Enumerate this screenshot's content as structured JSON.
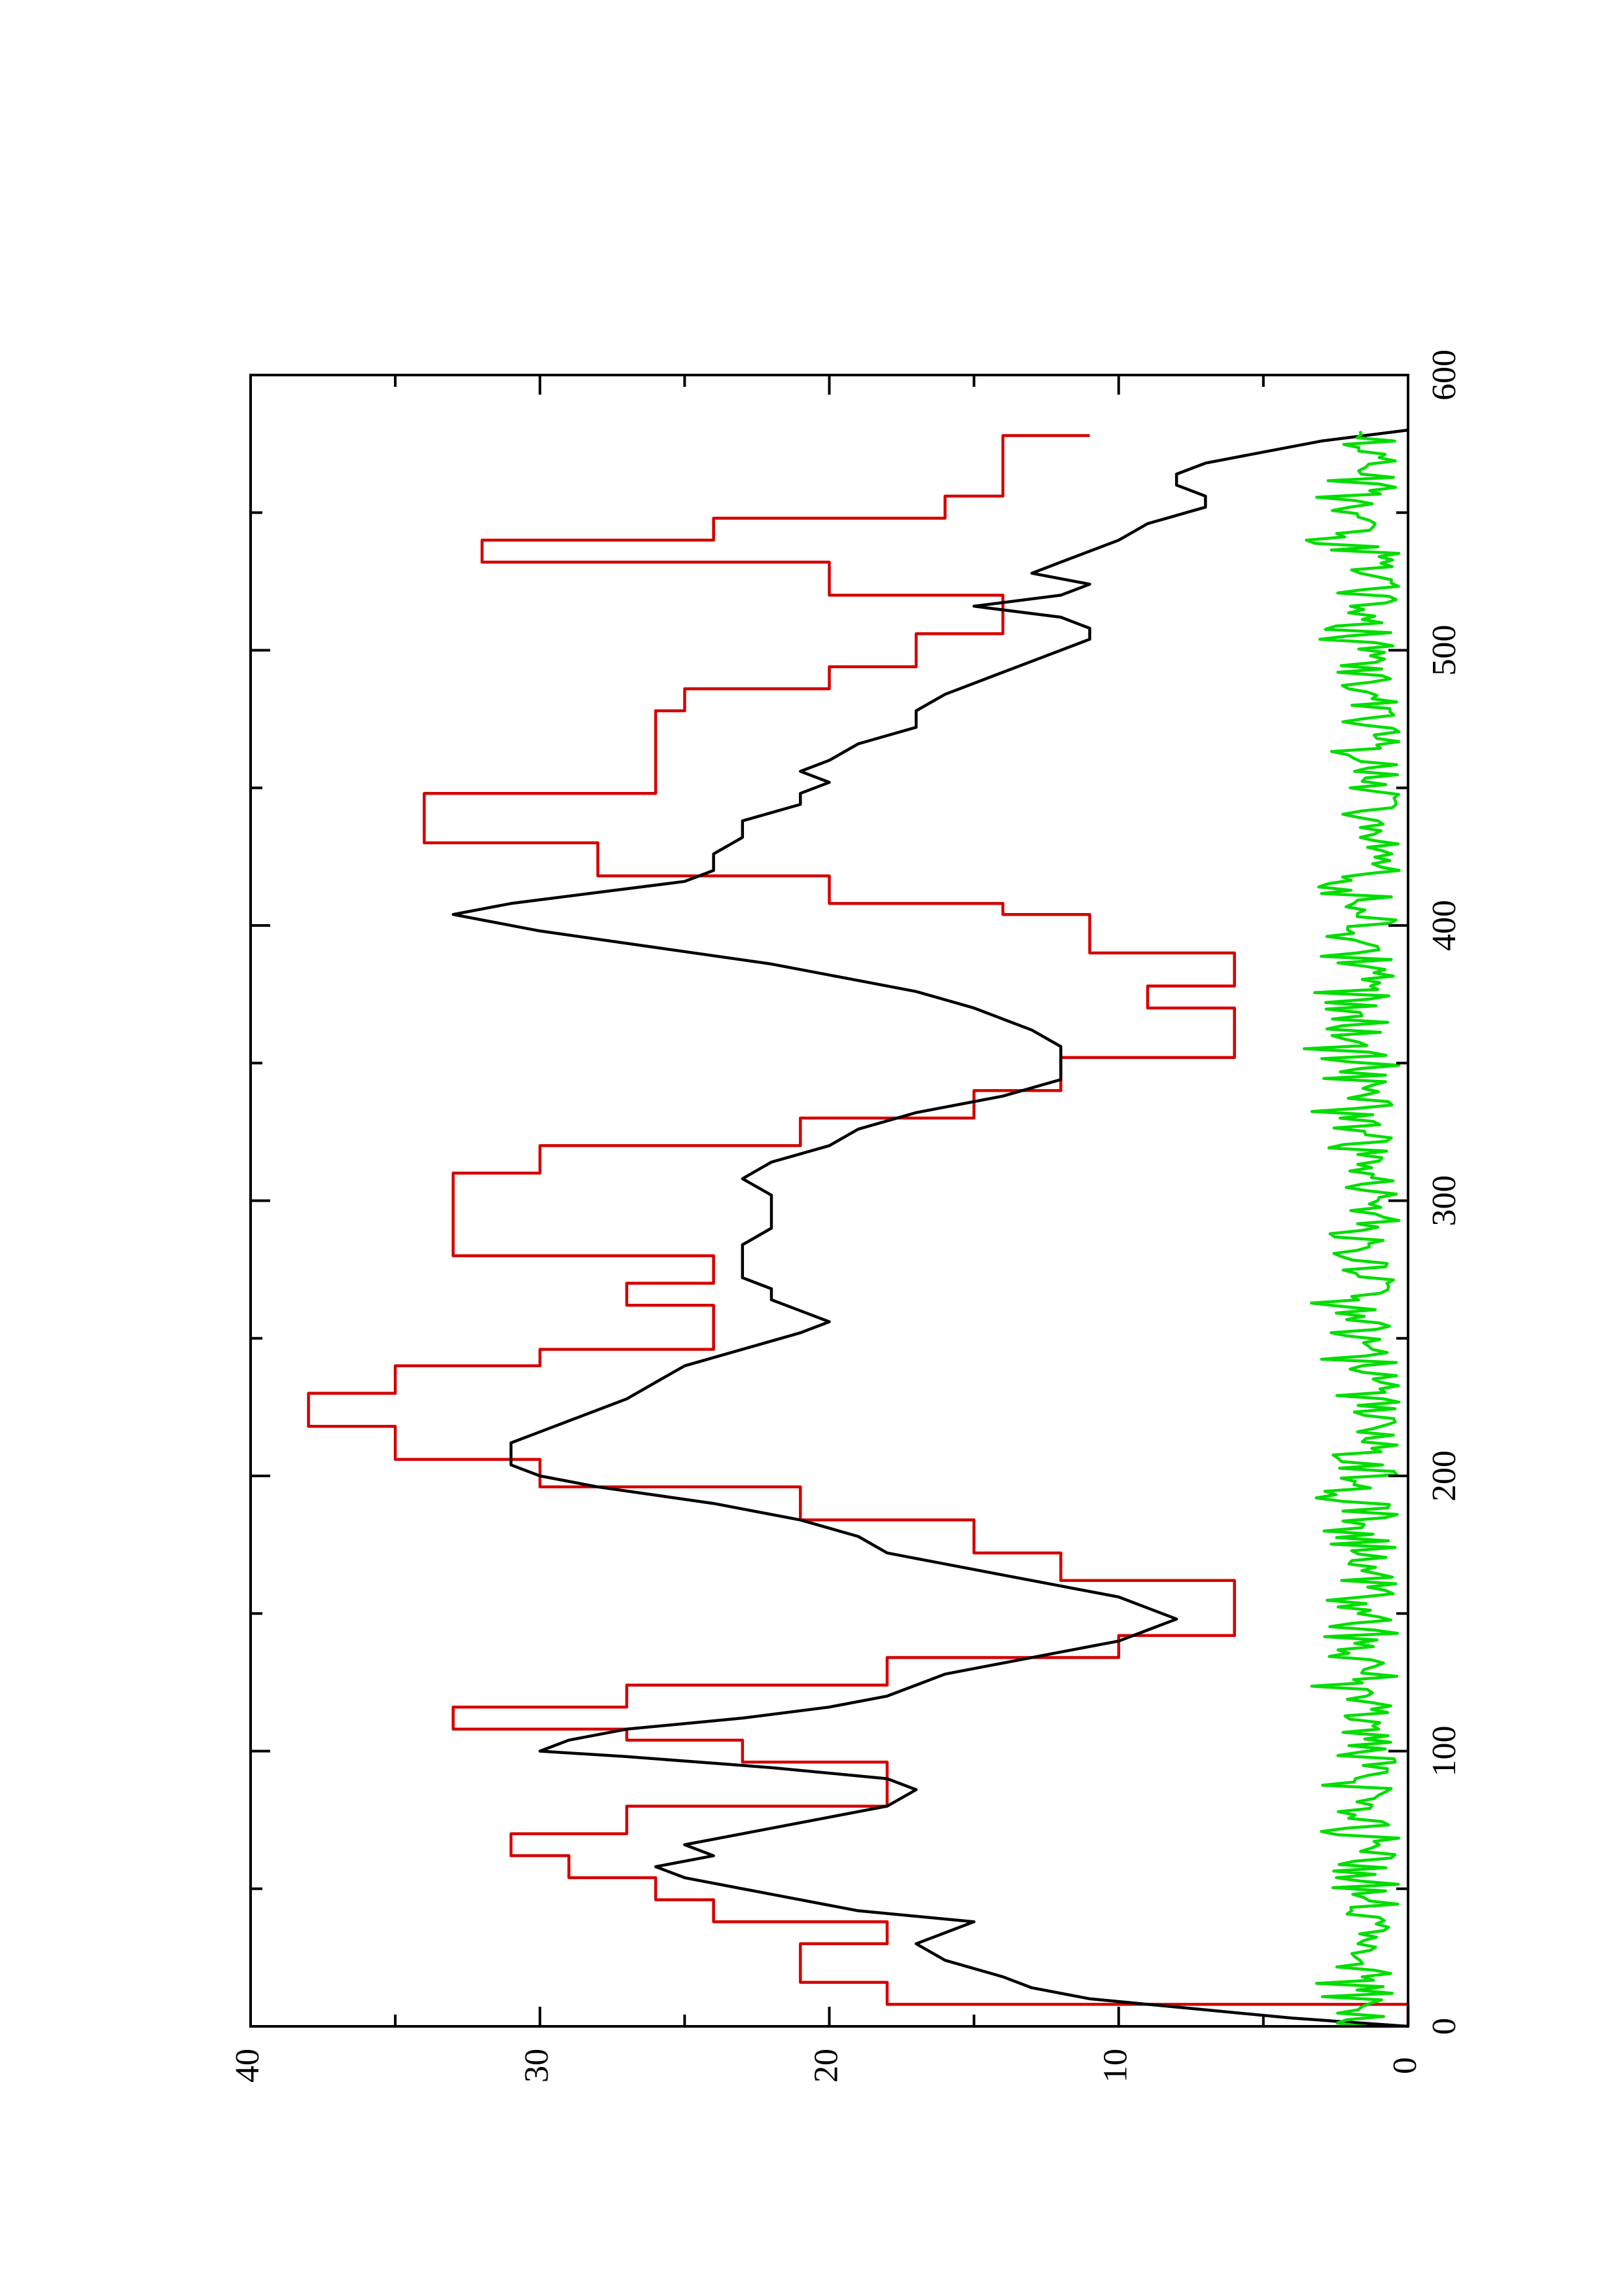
{
  "chart_data": {
    "type": "line",
    "title": "",
    "xlabel": "",
    "ylabel": "",
    "orientation": "rotated-90-ccw",
    "xlim": [
      0,
      600
    ],
    "ylim": [
      0,
      40
    ],
    "x_ticks": [
      0,
      100,
      200,
      300,
      400,
      500,
      600
    ],
    "x_tick_labels": [
      "0",
      "100",
      "200",
      "300",
      "400",
      "500",
      "600"
    ],
    "x_minor_ticks": [
      50,
      150,
      250,
      350,
      450,
      550
    ],
    "y_ticks": [
      0,
      10,
      20,
      30,
      40
    ],
    "y_tick_labels": [
      "0",
      "10",
      "20",
      "30",
      "40"
    ],
    "y_minor_ticks": [
      5,
      15,
      25,
      35
    ],
    "grid": false,
    "legend": "none",
    "series": [
      {
        "color": "#d40000",
        "step": true,
        "x": [
          0,
          8,
          16,
          30,
          38,
          46,
          54,
          62,
          70,
          80,
          96,
          104,
          108,
          116,
          124,
          134,
          142,
          148,
          158,
          162,
          172,
          184,
          196,
          206,
          218,
          230,
          240,
          246,
          254,
          262,
          270,
          280,
          300,
          310,
          320,
          330,
          340,
          352,
          362,
          370,
          378,
          390,
          404,
          408,
          418,
          430,
          448,
          454,
          462,
          478,
          486,
          494,
          506,
          520,
          532,
          540,
          548,
          556,
          566,
          578
        ],
        "y": [
          0,
          18,
          21,
          18,
          24,
          26,
          29,
          31,
          27,
          18,
          23,
          27,
          33,
          27,
          18,
          10,
          6,
          6,
          6,
          12,
          15,
          21,
          30,
          35,
          38,
          35,
          30,
          24,
          24,
          27,
          24,
          33,
          33,
          30,
          21,
          15,
          12,
          6,
          6,
          9,
          6,
          11,
          14,
          20,
          28,
          34,
          26,
          26,
          26,
          25,
          20,
          17,
          14,
          20,
          32,
          24,
          16,
          14,
          14,
          11
        ]
      },
      {
        "color": "#000000",
        "x": [
          0,
          3,
          6,
          10,
          14,
          18,
          24,
          30,
          34,
          38,
          42,
          48,
          54,
          58,
          62,
          66,
          70,
          76,
          80,
          86,
          90,
          94,
          98,
          100,
          104,
          108,
          112,
          116,
          120,
          124,
          128,
          132,
          136,
          140,
          144,
          148,
          152,
          156,
          160,
          164,
          168,
          172,
          178,
          184,
          190,
          196,
          200,
          204,
          208,
          212,
          216,
          220,
          224,
          228,
          234,
          240,
          246,
          252,
          256,
          260,
          264,
          268,
          272,
          278,
          284,
          290,
          296,
          302,
          308,
          314,
          320,
          326,
          332,
          338,
          344,
          350,
          356,
          362,
          366,
          370,
          376,
          380,
          386,
          392,
          398,
          404,
          408,
          412,
          416,
          420,
          426,
          432,
          438,
          444,
          448,
          452,
          456,
          460,
          466,
          472,
          478,
          484,
          488,
          492,
          496,
          500,
          504,
          508,
          512,
          516,
          520,
          524,
          528,
          532,
          536,
          540,
          546,
          552,
          556,
          560,
          564,
          568,
          572,
          576,
          580
        ],
        "y": [
          0,
          4,
          7,
          11,
          13,
          14,
          16,
          17,
          16,
          15,
          19,
          22,
          25,
          26,
          24,
          25,
          23,
          20,
          18,
          17,
          18,
          22,
          27,
          30,
          29,
          27,
          23,
          20,
          18,
          17,
          16,
          14,
          12,
          10,
          9,
          8,
          9,
          10,
          12,
          14,
          16,
          18,
          19,
          21,
          24,
          28,
          30,
          31,
          31,
          31,
          30,
          29,
          28,
          27,
          26,
          25,
          23,
          21,
          20,
          21,
          22,
          22,
          23,
          23,
          23,
          22,
          22,
          22,
          23,
          22,
          20,
          19,
          17,
          14,
          12,
          12,
          12,
          13,
          14,
          15,
          17,
          19,
          22,
          26,
          30,
          33,
          31,
          28,
          25,
          24,
          24,
          23,
          23,
          21,
          21,
          20,
          21,
          20,
          19,
          17,
          17,
          16,
          15,
          14,
          13,
          12,
          11,
          11,
          12,
          15,
          12,
          11,
          13,
          12,
          11,
          10,
          9,
          7,
          7,
          8,
          8,
          7,
          5,
          3,
          0
        ]
      },
      {
        "color": "#00dd00",
        "noisy": true,
        "x_start": 0,
        "x_end": 580,
        "y_min": 0.3,
        "y_max": 3.7
      }
    ]
  }
}
